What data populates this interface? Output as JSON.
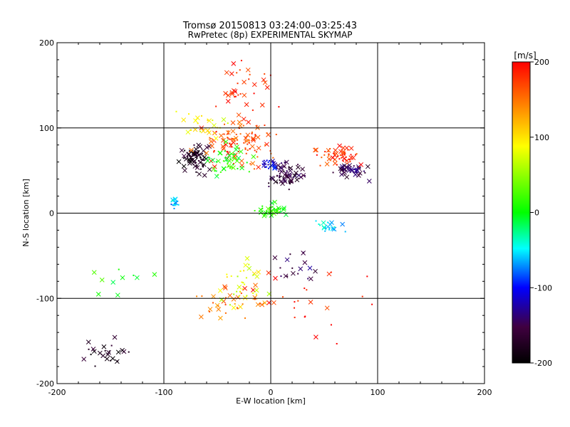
{
  "chart_data": {
    "type": "scatter",
    "title": "Tromsø 20150813 03:24:00–03:25:43",
    "subtitle": "RwPretec (8p) EXPERIMENTAL SKYMAP",
    "xlabel": "E-W location [km]",
    "ylabel": "N-S location [km]",
    "xlim": [
      -200,
      200
    ],
    "ylim": [
      -200,
      200
    ],
    "x_ticks": [
      "-200",
      "-100",
      "0",
      "100",
      "200"
    ],
    "y_ticks": [
      "200",
      "100",
      "0",
      "-100",
      "-200"
    ],
    "grid": true,
    "marker_types": [
      "dot",
      "x"
    ],
    "colorbar": {
      "label": "[m/s]",
      "min": -200,
      "max": 200,
      "ticks": [
        "200",
        "100",
        "0",
        "-100",
        "-200"
      ],
      "colors": [
        "#000000",
        "#400040",
        "#0000ff",
        "#00ffff",
        "#00ff00",
        "#ffff00",
        "#ff8000",
        "#ff0000"
      ]
    },
    "clusters": [
      {
        "velocity": -180,
        "x_center": -70,
        "y_center": 65,
        "x_spread": 14,
        "y_spread": 18,
        "count": 80
      },
      {
        "velocity": -160,
        "x_center": 15,
        "y_center": 45,
        "x_spread": 18,
        "y_spread": 18,
        "count": 70
      },
      {
        "velocity": -150,
        "x_center": 75,
        "y_center": 50,
        "x_spread": 18,
        "y_spread": 12,
        "count": 40
      },
      {
        "velocity": -180,
        "x_center": -155,
        "y_center": -165,
        "x_spread": 25,
        "y_spread": 18,
        "count": 25
      },
      {
        "velocity": 180,
        "x_center": 65,
        "y_center": 68,
        "x_spread": 22,
        "y_spread": 14,
        "count": 60
      },
      {
        "velocity": 170,
        "x_center": -30,
        "y_center": 85,
        "x_spread": 35,
        "y_spread": 35,
        "count": 110
      },
      {
        "velocity": 190,
        "x_center": -25,
        "y_center": 150,
        "x_spread": 40,
        "y_spread": 35,
        "count": 35
      },
      {
        "velocity": 150,
        "x_center": -35,
        "y_center": -105,
        "x_spread": 40,
        "y_spread": 25,
        "count": 35
      },
      {
        "velocity": 190,
        "x_center": 30,
        "y_center": -110,
        "x_spread": 80,
        "y_spread": 60,
        "count": 25
      },
      {
        "velocity": 10,
        "x_center": 0,
        "y_center": 3,
        "x_spread": 15,
        "y_spread": 8,
        "count": 45
      },
      {
        "velocity": -60,
        "x_center": -90,
        "y_center": 12,
        "x_spread": 5,
        "y_spread": 5,
        "count": 20
      },
      {
        "velocity": -50,
        "x_center": 55,
        "y_center": -15,
        "x_spread": 15,
        "y_spread": 8,
        "count": 20
      },
      {
        "velocity": 10,
        "x_center": -40,
        "y_center": 60,
        "x_spread": 25,
        "y_spread": 20,
        "count": 50
      },
      {
        "velocity": -110,
        "x_center": 0,
        "y_center": 58,
        "x_spread": 8,
        "y_spread": 8,
        "count": 22
      },
      {
        "velocity": 80,
        "x_center": -30,
        "y_center": -80,
        "x_spread": 25,
        "y_spread": 35,
        "count": 35
      },
      {
        "velocity": 90,
        "x_center": -60,
        "y_center": 100,
        "x_spread": 30,
        "y_spread": 25,
        "count": 25
      },
      {
        "velocity": 5,
        "x_center": -140,
        "y_center": -80,
        "x_spread": 40,
        "y_spread": 30,
        "count": 10
      },
      {
        "velocity": -150,
        "x_center": 25,
        "y_center": -60,
        "x_spread": 25,
        "y_spread": 25,
        "count": 18
      }
    ]
  }
}
